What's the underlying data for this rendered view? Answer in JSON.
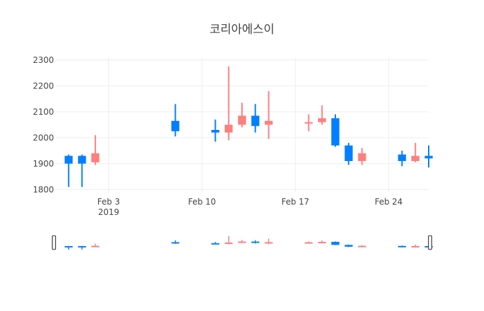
{
  "chart_data": {
    "type": "candlestick",
    "title": "코리아에스이",
    "xlabel": "",
    "ylabel": "",
    "x_range": [
      "2019-01-30",
      "2019-02-27"
    ],
    "ylim": [
      1790,
      2310
    ],
    "y_ticks": [
      1800,
      1900,
      2000,
      2100,
      2200,
      2300
    ],
    "x_ticks": [
      {
        "date": "2019-02-03",
        "label": "Feb 3",
        "sublabel": "2019"
      },
      {
        "date": "2019-02-10",
        "label": "Feb 10",
        "sublabel": ""
      },
      {
        "date": "2019-02-17",
        "label": "Feb 17",
        "sublabel": ""
      },
      {
        "date": "2019-02-24",
        "label": "Feb 24",
        "sublabel": ""
      }
    ],
    "grid": true,
    "legend": "none",
    "range_slider": true,
    "increasing_color": "#ff7f7f",
    "decreasing_color": "#0080ff",
    "candles": [
      {
        "date": "2019-01-31",
        "open": 1930,
        "high": 1935,
        "low": 1810,
        "close": 1900
      },
      {
        "date": "2019-02-01",
        "open": 1930,
        "high": 1935,
        "low": 1810,
        "close": 1900
      },
      {
        "date": "2019-02-02",
        "open": 1905,
        "high": 2010,
        "low": 1895,
        "close": 1940
      },
      {
        "date": "2019-02-08",
        "open": 2065,
        "high": 2130,
        "low": 2005,
        "close": 2025
      },
      {
        "date": "2019-02-11",
        "open": 2030,
        "high": 2070,
        "low": 1985,
        "close": 2020
      },
      {
        "date": "2019-02-12",
        "open": 2020,
        "high": 2275,
        "low": 1990,
        "close": 2050
      },
      {
        "date": "2019-02-13",
        "open": 2050,
        "high": 2135,
        "low": 2040,
        "close": 2085
      },
      {
        "date": "2019-02-14",
        "open": 2085,
        "high": 2130,
        "low": 2020,
        "close": 2045
      },
      {
        "date": "2019-02-15",
        "open": 2050,
        "high": 2180,
        "low": 1995,
        "close": 2065
      },
      {
        "date": "2019-02-18",
        "open": 2060,
        "high": 2090,
        "low": 2025,
        "close": 2060
      },
      {
        "date": "2019-02-19",
        "open": 2060,
        "high": 2125,
        "low": 2050,
        "close": 2075
      },
      {
        "date": "2019-02-20",
        "open": 2075,
        "high": 2090,
        "low": 1965,
        "close": 1970
      },
      {
        "date": "2019-02-21",
        "open": 1970,
        "high": 1980,
        "low": 1895,
        "close": 1910
      },
      {
        "date": "2019-02-22",
        "open": 1910,
        "high": 1960,
        "low": 1895,
        "close": 1940
      },
      {
        "date": "2019-02-25",
        "open": 1935,
        "high": 1950,
        "low": 1890,
        "close": 1910
      },
      {
        "date": "2019-02-26",
        "open": 1910,
        "high": 1980,
        "low": 1905,
        "close": 1930
      },
      {
        "date": "2019-02-27",
        "open": 1930,
        "high": 1970,
        "low": 1885,
        "close": 1920
      }
    ]
  }
}
